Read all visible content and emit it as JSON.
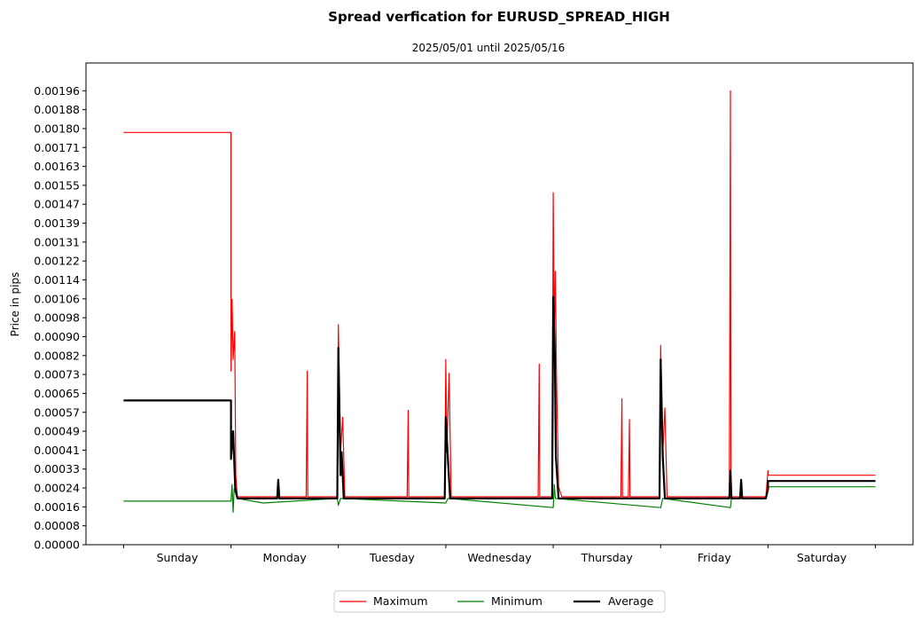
{
  "chart_data": {
    "type": "line",
    "title": "Spread verfication for EURUSD_SPREAD_HIGH",
    "subtitle": "2025/05/01 until 2025/05/16",
    "xlabel": "",
    "ylabel": "Price in pips",
    "xlim": [
      -0.35,
      7.35
    ],
    "ylim": [
      0,
      0.00208
    ],
    "grid": false,
    "legend_placement": "bottom-center",
    "x_ticks": [
      0,
      1,
      2,
      3,
      4,
      5,
      6,
      7
    ],
    "x_category_labels": [
      "Sunday",
      "Monday",
      "Tuesday",
      "Wednesday",
      "Thursday",
      "Friday",
      "Saturday"
    ],
    "y_ticks": [
      0,
      8.17e-05,
      0.0001633,
      0.000245,
      0.0003267,
      0.0004083,
      0.00049,
      0.0005717,
      0.0006533,
      0.000735,
      0.0008167,
      0.0008983,
      0.00098,
      0.0010617,
      0.0011433,
      0.001225,
      0.0013067,
      0.0013883,
      0.00147,
      0.0015517,
      0.0016333,
      0.001715,
      0.0017967,
      0.0018783,
      0.00196
    ],
    "y_tick_labels": [
      "0.00000",
      "0.00008",
      "0.00016",
      "0.00024",
      "0.00033",
      "0.00041",
      "0.00049",
      "0.00057",
      "0.00065",
      "0.00073",
      "0.00082",
      "0.00090",
      "0.00098",
      "0.00106",
      "0.00114",
      "0.00122",
      "0.00131",
      "0.00139",
      "0.00147",
      "0.00155",
      "0.00163",
      "0.00171",
      "0.00180",
      "0.00188",
      "0.00196"
    ],
    "series": [
      {
        "name": "Maximum",
        "color": "#ff0000",
        "width": 1.2,
        "points": [
          [
            0,
            0.00178
          ],
          [
            1.0,
            0.00178
          ],
          [
            1.0,
            0.00075
          ],
          [
            1.01,
            0.00106
          ],
          [
            1.02,
            0.0008
          ],
          [
            1.035,
            0.00092
          ],
          [
            1.045,
            0.0003
          ],
          [
            1.06,
            0.000207
          ],
          [
            1.7,
            0.000207
          ],
          [
            1.71,
            0.00075
          ],
          [
            1.715,
            0.000207
          ],
          [
            1.99,
            0.000207
          ],
          [
            2.0,
            0.00095
          ],
          [
            2.02,
            0.0004
          ],
          [
            2.04,
            0.00055
          ],
          [
            2.06,
            0.000207
          ],
          [
            2.64,
            0.000207
          ],
          [
            2.65,
            0.00058
          ],
          [
            2.655,
            0.000207
          ],
          [
            2.99,
            0.000207
          ],
          [
            3.0,
            0.0008
          ],
          [
            3.01,
            0.0004
          ],
          [
            3.03,
            0.00074
          ],
          [
            3.05,
            0.000207
          ],
          [
            3.86,
            0.000207
          ],
          [
            3.87,
            0.00078
          ],
          [
            3.875,
            0.000207
          ],
          [
            3.99,
            0.000207
          ],
          [
            4.0,
            0.00152
          ],
          [
            4.01,
            0.0009
          ],
          [
            4.02,
            0.00118
          ],
          [
            4.03,
            0.00075
          ],
          [
            4.05,
            0.00025
          ],
          [
            4.08,
            0.000207
          ],
          [
            4.63,
            0.000207
          ],
          [
            4.64,
            0.00063
          ],
          [
            4.645,
            0.000207
          ],
          [
            4.7,
            0.000207
          ],
          [
            4.71,
            0.00054
          ],
          [
            4.715,
            0.000207
          ],
          [
            4.99,
            0.000207
          ],
          [
            5.0,
            0.00086
          ],
          [
            5.02,
            0.0004
          ],
          [
            5.04,
            0.00059
          ],
          [
            5.06,
            0.000207
          ],
          [
            5.64,
            0.000207
          ],
          [
            5.65,
            0.00196
          ],
          [
            5.655,
            0.000207
          ],
          [
            5.74,
            0.000207
          ],
          [
            5.75,
            0.00028
          ],
          [
            5.755,
            0.000207
          ],
          [
            5.98,
            0.000207
          ],
          [
            6.0,
            0.00032
          ],
          [
            6.0,
            0.0003
          ],
          [
            7.0,
            0.0003
          ]
        ]
      },
      {
        "name": "Minimum",
        "color": "#008000",
        "width": 1.2,
        "points": [
          [
            0,
            0.000188
          ],
          [
            1.0,
            0.000188
          ],
          [
            1.01,
            0.00026
          ],
          [
            1.02,
            0.00014
          ],
          [
            1.03,
            0.00024
          ],
          [
            1.06,
            0.0002
          ],
          [
            1.3,
            0.00018
          ],
          [
            1.99,
            0.0002
          ],
          [
            2.0,
            0.00017
          ],
          [
            2.02,
            0.0002
          ],
          [
            3.0,
            0.00018
          ],
          [
            3.02,
            0.0002
          ],
          [
            4.0,
            0.00016
          ],
          [
            4.01,
            0.00026
          ],
          [
            4.02,
            0.0002
          ],
          [
            5.0,
            0.00016
          ],
          [
            5.02,
            0.0002
          ],
          [
            5.65,
            0.00016
          ],
          [
            5.66,
            0.0002
          ],
          [
            5.98,
            0.0002
          ],
          [
            6.0,
            0.00025
          ],
          [
            7.0,
            0.00025
          ]
        ]
      },
      {
        "name": "Average",
        "color": "#000000",
        "width": 2.2,
        "points": [
          [
            0,
            0.000623
          ],
          [
            1.0,
            0.000623
          ],
          [
            1.0,
            0.00037
          ],
          [
            1.02,
            0.00049
          ],
          [
            1.04,
            0.00024
          ],
          [
            1.06,
            0.0002
          ],
          [
            1.43,
            0.0002
          ],
          [
            1.44,
            0.00028
          ],
          [
            1.45,
            0.0002
          ],
          [
            1.99,
            0.0002
          ],
          [
            2.0,
            0.00085
          ],
          [
            2.02,
            0.0003
          ],
          [
            2.03,
            0.0004
          ],
          [
            2.05,
            0.0002
          ],
          [
            2.99,
            0.0002
          ],
          [
            3.0,
            0.00055
          ],
          [
            3.02,
            0.00037
          ],
          [
            3.04,
            0.0002
          ],
          [
            3.99,
            0.0002
          ],
          [
            4.0,
            0.00107
          ],
          [
            4.015,
            0.00082
          ],
          [
            4.025,
            0.00038
          ],
          [
            4.05,
            0.0002
          ],
          [
            4.99,
            0.0002
          ],
          [
            5.0,
            0.0008
          ],
          [
            5.02,
            0.00038
          ],
          [
            5.04,
            0.0002
          ],
          [
            5.64,
            0.0002
          ],
          [
            5.65,
            0.00032
          ],
          [
            5.66,
            0.0002
          ],
          [
            5.74,
            0.0002
          ],
          [
            5.75,
            0.00028
          ],
          [
            5.76,
            0.0002
          ],
          [
            5.98,
            0.0002
          ],
          [
            6.0,
            0.00024
          ],
          [
            6.0,
            0.000275
          ],
          [
            7.0,
            0.000275
          ]
        ]
      }
    ]
  }
}
